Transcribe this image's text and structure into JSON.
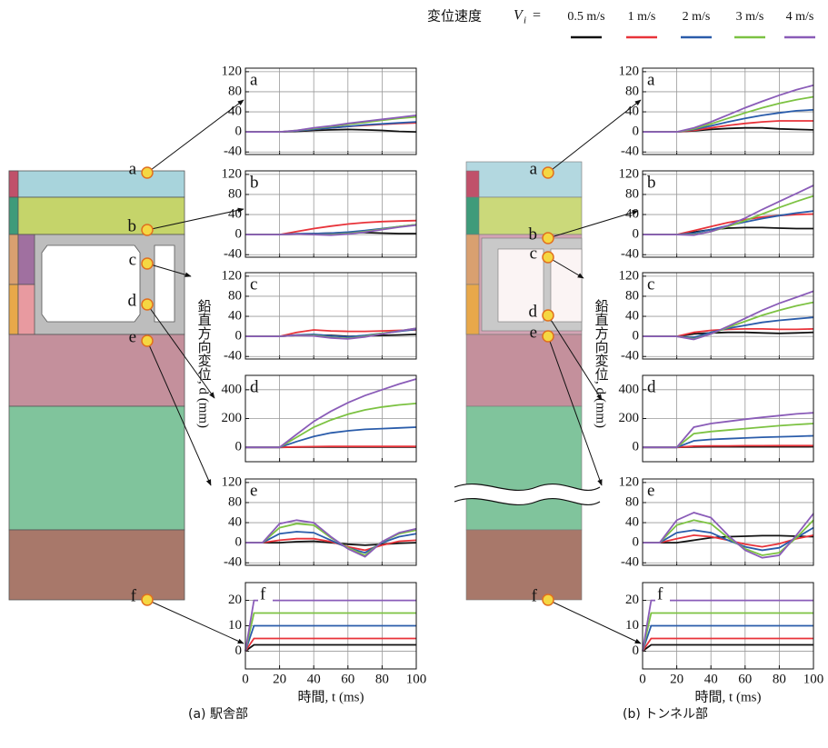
{
  "legend": {
    "title": "変位速度",
    "symbol": "V",
    "subscript": "i",
    "equals": "=",
    "entries": [
      {
        "name": "0.5 m/s",
        "color": "#111111"
      },
      {
        "name": "1 m/s",
        "color": "#e8333a"
      },
      {
        "name": "2 m/s",
        "color": "#2a5caa"
      },
      {
        "name": "3 m/s",
        "color": "#7cc242"
      },
      {
        "name": "4 m/s",
        "color": "#8a5cb8"
      }
    ]
  },
  "columns": [
    {
      "caption": "(a) 駅舎部",
      "y_label": "鉛直方向変位, d (mm)",
      "x_label": "時間, t (ms)",
      "points": [
        "a",
        "b",
        "c",
        "d",
        "e",
        "f"
      ]
    },
    {
      "caption": "(b) トンネル部",
      "y_label": "鉛直方向変位, d (mm)",
      "x_label": "時間, t (ms)",
      "points": [
        "a",
        "b",
        "c",
        "d",
        "e",
        "f"
      ]
    }
  ],
  "chart_data": [
    {
      "type": "line",
      "label": "a",
      "x": [
        0,
        10,
        20,
        30,
        40,
        50,
        60,
        70,
        80,
        90,
        100
      ],
      "xlim": [
        0,
        100
      ],
      "xticks": [
        0,
        20,
        40,
        60,
        80,
        100
      ],
      "xtick_labels": false,
      "ylim": [
        -45,
        127
      ],
      "yticks": [
        -40,
        0,
        40,
        80,
        120
      ],
      "grid": true,
      "series": [
        {
          "values": [
            0,
            0,
            0,
            1,
            3,
            4,
            5,
            4,
            3,
            1,
            0
          ]
        },
        {
          "values": [
            0,
            0,
            0,
            2,
            5,
            8,
            11,
            13,
            15,
            17,
            18
          ]
        },
        {
          "values": [
            0,
            0,
            0,
            2,
            5,
            8,
            11,
            14,
            16,
            18,
            20
          ]
        },
        {
          "values": [
            0,
            0,
            0,
            3,
            7,
            11,
            15,
            19,
            23,
            27,
            30
          ]
        },
        {
          "values": [
            0,
            0,
            0,
            3,
            8,
            12,
            17,
            21,
            25,
            29,
            33
          ]
        }
      ]
    },
    {
      "type": "line",
      "label": "b",
      "x": [
        0,
        10,
        20,
        30,
        40,
        50,
        60,
        70,
        80,
        90,
        100
      ],
      "xlim": [
        0,
        100
      ],
      "xticks": [
        0,
        20,
        40,
        60,
        80,
        100
      ],
      "xtick_labels": false,
      "ylim": [
        -45,
        127
      ],
      "yticks": [
        -40,
        0,
        40,
        80,
        120
      ],
      "grid": true,
      "series": [
        {
          "values": [
            0,
            0,
            0,
            1,
            2,
            3,
            4,
            4,
            3,
            2,
            2
          ]
        },
        {
          "values": [
            0,
            0,
            0,
            6,
            12,
            17,
            21,
            24,
            26,
            27,
            28
          ]
        },
        {
          "values": [
            0,
            0,
            0,
            2,
            2,
            3,
            5,
            8,
            12,
            16,
            20
          ]
        },
        {
          "values": [
            0,
            0,
            0,
            1,
            0,
            0,
            2,
            6,
            11,
            16,
            20
          ]
        },
        {
          "values": [
            0,
            0,
            0,
            1,
            0,
            -1,
            1,
            5,
            10,
            15,
            19
          ]
        }
      ]
    },
    {
      "type": "line",
      "label": "c",
      "x": [
        0,
        10,
        20,
        30,
        40,
        50,
        60,
        70,
        80,
        90,
        100
      ],
      "xlim": [
        0,
        100
      ],
      "xticks": [
        0,
        20,
        40,
        60,
        80,
        100
      ],
      "xtick_labels": false,
      "ylim": [
        -45,
        127
      ],
      "yticks": [
        -40,
        0,
        40,
        80,
        120
      ],
      "grid": true,
      "series": [
        {
          "values": [
            0,
            0,
            0,
            2,
            3,
            2,
            0,
            1,
            2,
            3,
            4
          ]
        },
        {
          "values": [
            0,
            0,
            0,
            8,
            13,
            11,
            10,
            10,
            11,
            12,
            13
          ]
        },
        {
          "values": [
            0,
            0,
            0,
            3,
            4,
            1,
            -1,
            2,
            6,
            10,
            14
          ]
        },
        {
          "values": [
            0,
            0,
            0,
            2,
            2,
            -2,
            -4,
            0,
            6,
            11,
            16
          ]
        },
        {
          "values": [
            0,
            0,
            0,
            2,
            1,
            -3,
            -5,
            -1,
            5,
            11,
            16
          ]
        }
      ]
    },
    {
      "type": "line",
      "label": "d",
      "x": [
        0,
        10,
        20,
        30,
        40,
        50,
        60,
        70,
        80,
        90,
        100
      ],
      "xlim": [
        0,
        100
      ],
      "xticks": [
        0,
        20,
        40,
        60,
        80,
        100
      ],
      "xtick_labels": false,
      "ylim": [
        -100,
        500
      ],
      "yticks": [
        0,
        200,
        400
      ],
      "grid": true,
      "series": [
        {
          "values": [
            0,
            0,
            0,
            1,
            2,
            2,
            2,
            2,
            2,
            2,
            2
          ]
        },
        {
          "values": [
            0,
            0,
            0,
            3,
            5,
            6,
            6,
            6,
            6,
            6,
            6
          ]
        },
        {
          "values": [
            0,
            0,
            0,
            40,
            75,
            100,
            115,
            125,
            130,
            135,
            140
          ]
        },
        {
          "values": [
            0,
            0,
            0,
            70,
            140,
            190,
            230,
            260,
            280,
            295,
            305
          ]
        },
        {
          "values": [
            0,
            0,
            0,
            90,
            180,
            250,
            310,
            360,
            400,
            440,
            475
          ]
        }
      ]
    },
    {
      "type": "line",
      "label": "e",
      "x": [
        0,
        10,
        20,
        30,
        40,
        50,
        60,
        70,
        80,
        90,
        100
      ],
      "xlim": [
        0,
        100
      ],
      "xticks": [
        0,
        20,
        40,
        60,
        80,
        100
      ],
      "xtick_labels": false,
      "ylim": [
        -45,
        127
      ],
      "yticks": [
        -40,
        0,
        40,
        80,
        120
      ],
      "grid": true,
      "series": [
        {
          "values": [
            0,
            0,
            0,
            2,
            3,
            0,
            -3,
            -5,
            -3,
            -1,
            0
          ]
        },
        {
          "values": [
            0,
            0,
            5,
            8,
            8,
            2,
            -8,
            -15,
            -5,
            3,
            5
          ]
        },
        {
          "values": [
            0,
            0,
            18,
            22,
            20,
            5,
            -10,
            -20,
            0,
            12,
            18
          ]
        },
        {
          "values": [
            0,
            0,
            30,
            38,
            35,
            10,
            -10,
            -25,
            2,
            18,
            25
          ]
        },
        {
          "values": [
            0,
            0,
            38,
            45,
            40,
            12,
            -12,
            -28,
            2,
            20,
            28
          ]
        }
      ]
    },
    {
      "type": "line",
      "label": "f",
      "x": [
        0,
        5,
        100
      ],
      "xlim": [
        0,
        100
      ],
      "xticks": [
        0,
        20,
        40,
        60,
        80,
        100
      ],
      "xtick_labels": true,
      "ylim": [
        -7,
        27
      ],
      "yticks": [
        0,
        10,
        20
      ],
      "grid": true,
      "series": [
        {
          "values": [
            0,
            2.5,
            2.5
          ]
        },
        {
          "values": [
            0,
            5,
            5
          ]
        },
        {
          "values": [
            0,
            10,
            10
          ]
        },
        {
          "values": [
            0,
            15,
            15
          ]
        },
        {
          "values": [
            0,
            20,
            20
          ]
        }
      ]
    },
    {
      "type": "line",
      "label": "a",
      "x": [
        0,
        10,
        20,
        30,
        40,
        50,
        60,
        70,
        80,
        90,
        100
      ],
      "xlim": [
        0,
        100
      ],
      "xticks": [
        0,
        20,
        40,
        60,
        80,
        100
      ],
      "xtick_labels": false,
      "ylim": [
        -45,
        127
      ],
      "yticks": [
        -40,
        0,
        40,
        80,
        120
      ],
      "grid": true,
      "series": [
        {
          "values": [
            0,
            0,
            0,
            2,
            5,
            7,
            8,
            8,
            6,
            5,
            4
          ]
        },
        {
          "values": [
            0,
            0,
            0,
            3,
            8,
            13,
            17,
            20,
            22,
            22,
            22
          ]
        },
        {
          "values": [
            0,
            0,
            0,
            5,
            12,
            20,
            27,
            33,
            38,
            42,
            44
          ]
        },
        {
          "values": [
            0,
            0,
            0,
            6,
            16,
            27,
            38,
            48,
            57,
            64,
            70
          ]
        },
        {
          "values": [
            0,
            0,
            0,
            8,
            20,
            34,
            48,
            61,
            73,
            84,
            93
          ]
        }
      ]
    },
    {
      "type": "line",
      "label": "b",
      "x": [
        0,
        10,
        20,
        30,
        40,
        50,
        60,
        70,
        80,
        90,
        100
      ],
      "xlim": [
        0,
        100
      ],
      "xticks": [
        0,
        20,
        40,
        60,
        80,
        100
      ],
      "xtick_labels": false,
      "ylim": [
        -45,
        127
      ],
      "yticks": [
        -40,
        0,
        40,
        80,
        120
      ],
      "grid": true,
      "series": [
        {
          "values": [
            0,
            0,
            0,
            5,
            10,
            13,
            14,
            14,
            13,
            12,
            12
          ]
        },
        {
          "values": [
            0,
            0,
            0,
            8,
            16,
            24,
            30,
            35,
            38,
            40,
            41
          ]
        },
        {
          "values": [
            0,
            0,
            0,
            3,
            10,
            18,
            25,
            32,
            38,
            43,
            47
          ]
        },
        {
          "values": [
            0,
            0,
            0,
            0,
            6,
            16,
            28,
            41,
            54,
            66,
            77
          ]
        },
        {
          "values": [
            0,
            0,
            0,
            -1,
            6,
            18,
            33,
            50,
            66,
            82,
            98
          ]
        }
      ]
    },
    {
      "type": "line",
      "label": "c",
      "x": [
        0,
        10,
        20,
        30,
        40,
        50,
        60,
        70,
        80,
        90,
        100
      ],
      "xlim": [
        0,
        100
      ],
      "xticks": [
        0,
        20,
        40,
        60,
        80,
        100
      ],
      "xtick_labels": false,
      "ylim": [
        -45,
        127
      ],
      "yticks": [
        -40,
        0,
        40,
        80,
        120
      ],
      "grid": true,
      "series": [
        {
          "values": [
            0,
            0,
            0,
            5,
            7,
            8,
            8,
            7,
            6,
            7,
            8
          ]
        },
        {
          "values": [
            0,
            0,
            0,
            8,
            12,
            14,
            15,
            15,
            14,
            14,
            15
          ]
        },
        {
          "values": [
            0,
            0,
            0,
            -2,
            8,
            16,
            22,
            28,
            32,
            35,
            38
          ]
        },
        {
          "values": [
            0,
            0,
            0,
            -5,
            5,
            18,
            30,
            42,
            52,
            61,
            68
          ]
        },
        {
          "values": [
            0,
            0,
            0,
            -6,
            5,
            20,
            36,
            52,
            66,
            78,
            90
          ]
        }
      ]
    },
    {
      "type": "line",
      "label": "d",
      "x": [
        0,
        10,
        20,
        30,
        40,
        50,
        60,
        70,
        80,
        90,
        100
      ],
      "xlim": [
        0,
        100
      ],
      "xticks": [
        0,
        20,
        40,
        60,
        80,
        100
      ],
      "xtick_labels": false,
      "ylim": [
        -100,
        500
      ],
      "yticks": [
        0,
        200,
        400
      ],
      "grid": true,
      "series": [
        {
          "values": [
            0,
            0,
            0,
            3,
            4,
            4,
            4,
            4,
            4,
            4,
            5
          ]
        },
        {
          "values": [
            0,
            0,
            0,
            8,
            10,
            10,
            11,
            11,
            12,
            12,
            12
          ]
        },
        {
          "values": [
            0,
            0,
            0,
            45,
            55,
            60,
            65,
            70,
            73,
            76,
            80
          ]
        },
        {
          "values": [
            0,
            0,
            0,
            95,
            110,
            120,
            130,
            140,
            150,
            158,
            165
          ]
        },
        {
          "values": [
            0,
            0,
            0,
            140,
            165,
            180,
            195,
            208,
            220,
            232,
            240
          ]
        }
      ]
    },
    {
      "type": "line",
      "label": "e",
      "x": [
        0,
        10,
        20,
        30,
        40,
        50,
        60,
        70,
        80,
        90,
        100
      ],
      "xlim": [
        0,
        100
      ],
      "xticks": [
        0,
        20,
        40,
        60,
        80,
        100
      ],
      "xtick_labels": false,
      "ylim": [
        -45,
        127
      ],
      "yticks": [
        -40,
        0,
        40,
        80,
        120
      ],
      "grid": true,
      "series": [
        {
          "values": [
            0,
            0,
            0,
            5,
            10,
            12,
            13,
            14,
            14,
            13,
            12
          ]
        },
        {
          "values": [
            0,
            0,
            8,
            15,
            12,
            5,
            -3,
            -8,
            -2,
            8,
            15
          ]
        },
        {
          "values": [
            0,
            0,
            20,
            25,
            20,
            5,
            -8,
            -15,
            -10,
            10,
            30
          ]
        },
        {
          "values": [
            0,
            0,
            35,
            45,
            38,
            10,
            -12,
            -25,
            -20,
            10,
            45
          ]
        },
        {
          "values": [
            0,
            0,
            45,
            60,
            50,
            15,
            -15,
            -30,
            -25,
            15,
            58
          ]
        }
      ]
    },
    {
      "type": "line",
      "label": "f",
      "x": [
        0,
        5,
        100
      ],
      "xlim": [
        0,
        100
      ],
      "xticks": [
        0,
        20,
        40,
        60,
        80,
        100
      ],
      "xtick_labels": true,
      "ylim": [
        -7,
        27
      ],
      "yticks": [
        0,
        10,
        20
      ],
      "grid": true,
      "series": [
        {
          "values": [
            0,
            2.5,
            2.5
          ]
        },
        {
          "values": [
            0,
            5,
            5
          ]
        },
        {
          "values": [
            0,
            10,
            10
          ]
        },
        {
          "values": [
            0,
            15,
            15
          ]
        },
        {
          "values": [
            0,
            20,
            20
          ]
        }
      ]
    }
  ]
}
